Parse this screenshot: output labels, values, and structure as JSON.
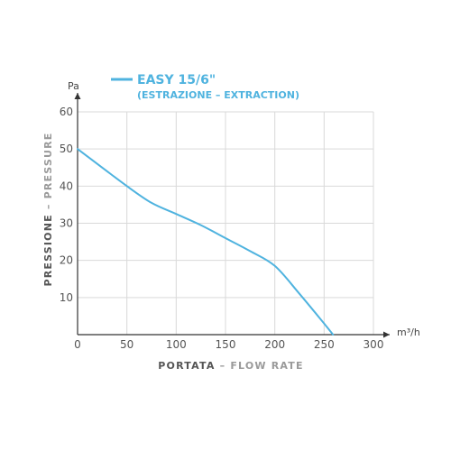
{
  "chart_data": {
    "type": "line",
    "series": [
      {
        "name": "EASY 15/6\"",
        "x": [
          0,
          25,
          50,
          75,
          100,
          125,
          150,
          175,
          200,
          225,
          250,
          259
        ],
        "values": [
          50,
          45,
          40,
          35.5,
          32.5,
          29.5,
          26,
          22.5,
          18.5,
          11,
          3,
          0
        ],
        "color": "#4fb3df"
      }
    ],
    "legend": {
      "title": "EASY 15/6\"",
      "subtitle": "(ESTRAZIONE – EXTRACTION)",
      "position": "top-left"
    },
    "xlabel_main": "PORTATA",
    "xlabel_sep": " – ",
    "xlabel_sub": "FLOW RATE",
    "ylabel_main": "PRESSIONE",
    "ylabel_sep": " – ",
    "ylabel_sub": "PRESSURE",
    "xunit": "m³/h",
    "yunit": "Pa",
    "xlim": [
      0,
      300
    ],
    "ylim": [
      0,
      60
    ],
    "xticks": [
      0,
      50,
      100,
      150,
      200,
      250,
      300
    ],
    "yticks": [
      10,
      20,
      30,
      40,
      50,
      60
    ],
    "grid": true,
    "colors": {
      "line": "#4fb3df",
      "grid": "#d9d9d9",
      "axis": "#333333",
      "title_dark": "#555555",
      "title_light": "#9a9a9a"
    }
  }
}
